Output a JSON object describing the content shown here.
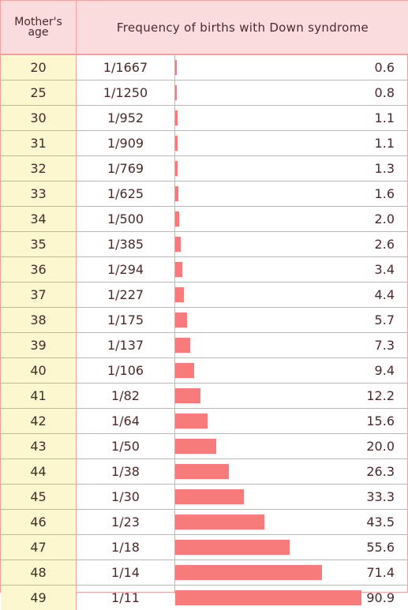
{
  "header": {
    "age_label": "Mother's age",
    "frequency_label": "Frequency of births with Down syndrome"
  },
  "colors": {
    "bar": "#f77b7b",
    "border": "#f0a2a2",
    "header_bg": "#fbdcdc",
    "age_bg": "#fdf7cf"
  },
  "chart_data": {
    "type": "bar",
    "orientation": "horizontal",
    "title": "Frequency of births with Down syndrome",
    "categories": [
      "20",
      "25",
      "30",
      "31",
      "32",
      "33",
      "34",
      "35",
      "36",
      "37",
      "38",
      "39",
      "40",
      "41",
      "42",
      "43",
      "44",
      "45",
      "46",
      "47",
      "48",
      "49"
    ],
    "ratios": [
      "1/1667",
      "1/1250",
      "1/952",
      "1/909",
      "1/769",
      "1/625",
      "1/500",
      "1/385",
      "1/294",
      "1/227",
      "1/175",
      "1/137",
      "1/106",
      "1/82",
      "1/64",
      "1/50",
      "1/38",
      "1/30",
      "1/23",
      "1/18",
      "1/14",
      "1/11"
    ],
    "values": [
      0.6,
      0.8,
      1.1,
      1.1,
      1.3,
      1.6,
      2.0,
      2.6,
      3.4,
      4.4,
      5.7,
      7.3,
      9.4,
      12.2,
      15.6,
      20.0,
      26.3,
      33.3,
      43.5,
      55.6,
      71.4,
      90.9
    ],
    "value_labels": [
      "0.6",
      "0.8",
      "1.1",
      "1.1",
      "1.3",
      "1.6",
      "2.0",
      "2.6",
      "3.4",
      "4.4",
      "5.7",
      "7.3",
      "9.4",
      "12.2",
      "15.6",
      "20.0",
      "26.3",
      "33.3",
      "43.5",
      "55.6",
      "71.4",
      "90.9"
    ]
  }
}
